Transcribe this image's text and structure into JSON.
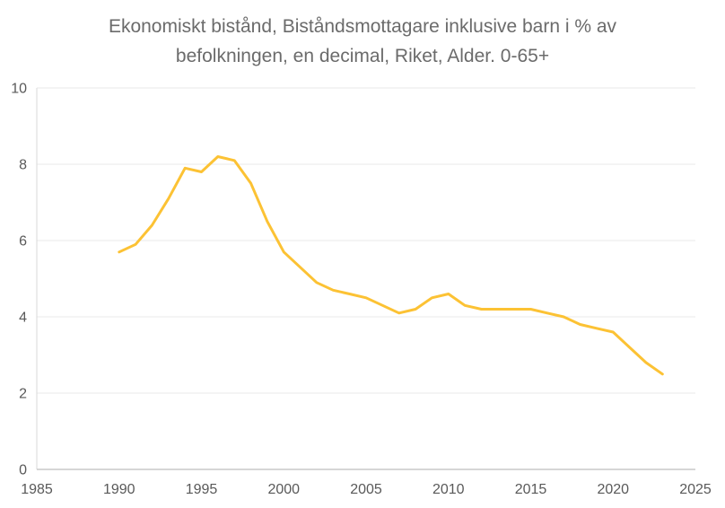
{
  "title": {
    "line1": "Ekonomiskt bistånd, Biståndsmottagare inklusive barn i % av",
    "line2": "befolkningen, en decimal, Riket, Alder. 0-65+",
    "color": "#6B6B6B"
  },
  "colors": {
    "line": "#FCC234",
    "grid": "#E8E8E8",
    "axis_bottom": "#C9C9C9",
    "axis_left": "#DADADA",
    "tick_text": "#595959",
    "background": "#FFFFFF"
  },
  "chart_data": {
    "type": "line",
    "title": "Ekonomiskt bistånd, Biståndsmottagare inklusive barn i % av befolkningen, en decimal, Riket, Alder. 0-65+",
    "xlabel": "",
    "ylabel": "",
    "xlim": [
      1985,
      2025
    ],
    "ylim": [
      0,
      10
    ],
    "xticks": [
      1985,
      1990,
      1995,
      2000,
      2005,
      2010,
      2015,
      2020,
      2025
    ],
    "yticks": [
      0,
      2,
      4,
      6,
      8,
      10
    ],
    "grid": "horizontal-only",
    "legend_position": "none",
    "series": [
      {
        "name": "Biståndsmottagare inklusive barn i % av befolkningen, Riket",
        "color": "#FCC234",
        "x": [
          1990,
          1991,
          1992,
          1993,
          1994,
          1995,
          1996,
          1997,
          1998,
          1999,
          2000,
          2001,
          2002,
          2003,
          2004,
          2005,
          2006,
          2007,
          2008,
          2009,
          2010,
          2011,
          2012,
          2013,
          2014,
          2015,
          2016,
          2017,
          2018,
          2019,
          2020,
          2021,
          2022,
          2023
        ],
        "values": [
          5.7,
          5.9,
          6.4,
          7.1,
          7.9,
          7.8,
          8.2,
          8.1,
          7.5,
          6.5,
          5.7,
          5.3,
          4.9,
          4.7,
          4.6,
          4.5,
          4.3,
          4.1,
          4.2,
          4.5,
          4.6,
          4.3,
          4.2,
          4.2,
          4.2,
          4.2,
          4.1,
          4.0,
          3.8,
          3.7,
          3.6,
          3.2,
          2.8,
          2.5
        ]
      }
    ]
  }
}
